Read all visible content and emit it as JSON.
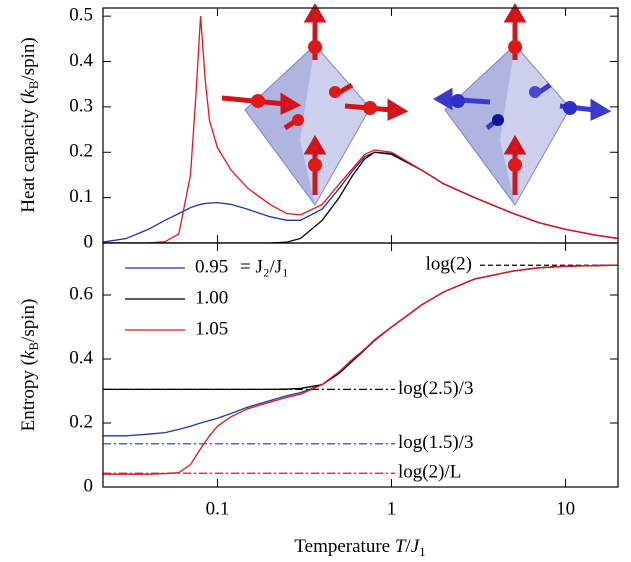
{
  "chart_data": [
    {
      "type": "line",
      "ylabel": [
        "Heat capacity (",
        "k",
        "B",
        "/spin)"
      ],
      "xscale": "log",
      "xlim": [
        0.022,
        20
      ],
      "xticks": [
        0.1,
        1,
        10
      ],
      "ylim": [
        0,
        0.518
      ],
      "yticks": [
        0,
        0.1,
        0.2,
        0.3,
        0.4,
        0.5
      ],
      "x": [
        0.022,
        0.03,
        0.04,
        0.05,
        0.06,
        0.07,
        0.075,
        0.08,
        0.085,
        0.09,
        0.1,
        0.12,
        0.15,
        0.2,
        0.25,
        0.3,
        0.4,
        0.5,
        0.6,
        0.7,
        0.8,
        1,
        1.5,
        2,
        3,
        5,
        7,
        10,
        15,
        20
      ],
      "series": [
        {
          "name": "0.95",
          "color": "#1f3a9a",
          "values": [
            0.002,
            0.01,
            0.03,
            0.05,
            0.065,
            0.078,
            0.082,
            0.085,
            0.087,
            0.088,
            0.089,
            0.085,
            0.074,
            0.058,
            0.05,
            0.05,
            0.075,
            0.12,
            0.16,
            0.19,
            0.2,
            0.195,
            0.16,
            0.13,
            0.1,
            0.065,
            0.045,
            0.03,
            0.017,
            0.01
          ]
        },
        {
          "name": "1.00",
          "color": "#000000",
          "values": [
            0,
            0,
            0,
            0,
            0,
            0,
            0,
            0,
            0,
            0,
            0,
            0,
            0,
            0,
            0.002,
            0.01,
            0.05,
            0.1,
            0.15,
            0.185,
            0.2,
            0.197,
            0.16,
            0.13,
            0.1,
            0.065,
            0.045,
            0.03,
            0.017,
            0.01
          ]
        },
        {
          "name": "1.05",
          "color": "#e8141c",
          "values": [
            0,
            0,
            0,
            0.003,
            0.02,
            0.15,
            0.32,
            0.5,
            0.36,
            0.27,
            0.21,
            0.16,
            0.12,
            0.085,
            0.065,
            0.062,
            0.085,
            0.13,
            0.165,
            0.195,
            0.205,
            0.2,
            0.16,
            0.13,
            0.1,
            0.065,
            0.045,
            0.03,
            0.017,
            0.01
          ]
        }
      ]
    },
    {
      "type": "line",
      "ylabel": [
        "Entropy (",
        "k",
        "B",
        "/spin)"
      ],
      "xlabel": [
        "Temperature ",
        "T",
        "/",
        "J",
        "1"
      ],
      "xscale": "log",
      "xlim": [
        0.022,
        20
      ],
      "xticks": [
        0.1,
        1,
        10
      ],
      "ylim": [
        0,
        0.7625
      ],
      "yticks": [
        0,
        0.2,
        0.4,
        0.6
      ],
      "legend_title": "= J₂/J₁",
      "x": [
        0.022,
        0.03,
        0.04,
        0.05,
        0.06,
        0.07,
        0.08,
        0.09,
        0.1,
        0.12,
        0.15,
        0.2,
        0.25,
        0.3,
        0.4,
        0.5,
        0.6,
        0.7,
        0.8,
        1,
        1.5,
        2,
        3,
        5,
        7,
        10,
        15,
        20
      ],
      "series": [
        {
          "name": "0.95",
          "color": "#1f3a9a",
          "values": [
            0.16,
            0.16,
            0.165,
            0.17,
            0.18,
            0.19,
            0.2,
            0.208,
            0.215,
            0.23,
            0.25,
            0.27,
            0.285,
            0.295,
            0.32,
            0.36,
            0.4,
            0.43,
            0.46,
            0.5,
            0.57,
            0.61,
            0.65,
            0.675,
            0.685,
            0.69,
            0.692,
            0.693
          ]
        },
        {
          "name": "1.00",
          "color": "#000000",
          "values": [
            0.305,
            0.305,
            0.305,
            0.305,
            0.305,
            0.305,
            0.305,
            0.305,
            0.305,
            0.305,
            0.305,
            0.305,
            0.306,
            0.308,
            0.32,
            0.355,
            0.395,
            0.428,
            0.458,
            0.5,
            0.57,
            0.61,
            0.65,
            0.675,
            0.685,
            0.69,
            0.692,
            0.693
          ]
        },
        {
          "name": "1.05",
          "color": "#e8141c",
          "values": [
            0.04,
            0.04,
            0.04,
            0.042,
            0.045,
            0.07,
            0.12,
            0.16,
            0.19,
            0.22,
            0.245,
            0.265,
            0.28,
            0.29,
            0.32,
            0.36,
            0.4,
            0.43,
            0.46,
            0.5,
            0.57,
            0.61,
            0.65,
            0.675,
            0.685,
            0.69,
            0.692,
            0.693
          ]
        }
      ],
      "reference_lines": [
        {
          "value": 0.693,
          "label": "log(2)",
          "color": "#000000",
          "style": "dashed"
        },
        {
          "value": 0.305,
          "label": "log(2.5)/3",
          "color": "#000000",
          "style": "dashdot"
        },
        {
          "value": 0.135,
          "label": "log(1.5)/3",
          "color": "#1f3a9a",
          "style": "dashdot"
        },
        {
          "value": 0.043,
          "label": "log(2)/L",
          "color": "#e8141c",
          "style": "dashdot"
        }
      ]
    }
  ]
}
